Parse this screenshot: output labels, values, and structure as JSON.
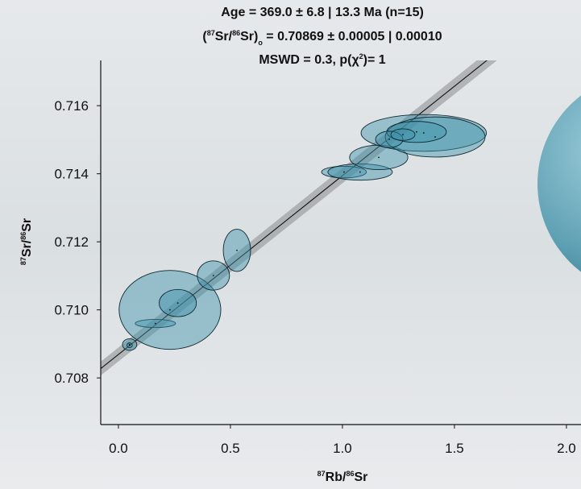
{
  "chart_data": {
    "type": "isochron",
    "title_lines": [
      [
        "Age = 369.0 ± 6.8 | 13.3 Ma (n=15)"
      ],
      [
        "(",
        "87",
        "Sr/",
        "86",
        "Sr)",
        "o",
        " = 0.70869 ± 0.00005 | 0.00010"
      ],
      [
        "MSWD = 0.3, p(χ",
        "2",
        ")= 1"
      ]
    ],
    "age": 369.0,
    "age_error": 6.8,
    "intercept": 0.70869,
    "x_label": [
      "87",
      "Rb/",
      "86",
      "Sr"
    ],
    "y_label": [
      "87",
      "Sr/",
      "86",
      "Sr"
    ],
    "xlim": [
      -0.079,
      2.065
    ],
    "ylim": [
      0.70663,
      0.71733
    ],
    "xticks": [
      {
        "value": 0,
        "label": "0.0"
      },
      0.5,
      {
        "value": 1,
        "label": "1.0"
      },
      1.5,
      {
        "value": 2,
        "label": "2.0"
      }
    ],
    "yticks": [
      0.708,
      {
        "value": 0.71,
        "label": "0.710"
      },
      0.712,
      0.714,
      0.716
    ],
    "color": "#3f93ab",
    "ellipses": [
      {
        "x": 0.05,
        "x_err": 0.032,
        "y": 0.70898,
        "y_err": 0.00017
      },
      {
        "x": 0.05,
        "x_err": 0.012,
        "y": 0.70896,
        "y_err": 7e-05
      },
      {
        "x": 0.165,
        "x_err": 0.09,
        "y": 0.7096,
        "y_err": 0.00012
      },
      {
        "x": 0.23,
        "x_err": 0.227,
        "y": 0.71,
        "y_err": 0.00116
      },
      {
        "x": 0.265,
        "x_err": 0.083,
        "y": 0.7102,
        "y_err": 0.0004
      },
      {
        "x": 0.424,
        "x_err": 0.072,
        "y": 0.71101,
        "y_err": 0.00043
      },
      {
        "x": 0.529,
        "x_err": 0.061,
        "y": 0.71175,
        "y_err": 0.00062
      },
      {
        "x": 1.007,
        "x_err": 0.1,
        "y": 0.71405,
        "y_err": 0.00017
      },
      {
        "x": 1.079,
        "x_err": 0.144,
        "y": 0.71405,
        "y_err": 0.00024
      },
      {
        "x": 1.162,
        "x_err": 0.13,
        "y": 0.71448,
        "y_err": 0.00036
      },
      {
        "x": 1.363,
        "x_err": 0.28,
        "y": 0.7152,
        "y_err": 0.00054
      },
      {
        "x": 1.414,
        "x_err": 0.223,
        "y": 0.71508,
        "y_err": 0.00059
      },
      {
        "x": 1.331,
        "x_err": 0.133,
        "y": 0.71523,
        "y_err": 0.00031
      },
      {
        "x": 1.209,
        "x_err": 0.061,
        "y": 0.71501,
        "y_err": 0.00024
      },
      {
        "x": 1.27,
        "x_err": 0.054,
        "y": 0.71515,
        "y_err": 0.00017
      }
    ]
  }
}
